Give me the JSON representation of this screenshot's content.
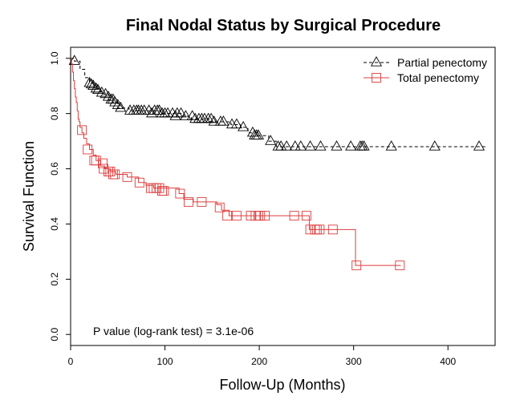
{
  "chart_data": {
    "type": "line",
    "title": "Final Nodal Status by Surgical Procedure",
    "xlabel": "Follow-Up (Months)",
    "ylabel": "Survival Function",
    "xlim": [
      0,
      450
    ],
    "ylim": [
      -0.04,
      1.04
    ],
    "x_ticks": [
      0,
      100,
      200,
      300,
      400
    ],
    "y_ticks": [
      0.0,
      0.2,
      0.4,
      0.6,
      0.8,
      1.0
    ],
    "x_tick_labels": [
      "0",
      "100",
      "200",
      "300",
      "400"
    ],
    "y_tick_labels": [
      "0.0",
      "0.2",
      "0.4",
      "0.6",
      "0.8",
      "1.0"
    ],
    "grid": false,
    "legend_position": "top-right",
    "annotation": "P value (log-rank test) = 3.1e-06",
    "series": [
      {
        "name": "Partial penectomy",
        "color": "#000000",
        "line_style": "dashed",
        "marker": "triangle",
        "steps": [
          [
            0,
            1.0
          ],
          [
            4,
            0.99
          ],
          [
            10,
            0.96
          ],
          [
            15,
            0.93
          ],
          [
            20,
            0.91
          ],
          [
            25,
            0.89
          ],
          [
            30,
            0.88
          ],
          [
            35,
            0.87
          ],
          [
            40,
            0.85
          ],
          [
            45,
            0.84
          ],
          [
            50,
            0.82
          ],
          [
            62,
            0.81
          ],
          [
            95,
            0.8
          ],
          [
            120,
            0.79
          ],
          [
            128,
            0.78
          ],
          [
            148,
            0.77
          ],
          [
            170,
            0.76
          ],
          [
            180,
            0.75
          ],
          [
            188,
            0.73
          ],
          [
            198,
            0.72
          ],
          [
            210,
            0.7
          ],
          [
            218,
            0.68
          ],
          [
            440,
            0.68
          ]
        ],
        "censored": [
          [
            4,
            0.99
          ],
          [
            20,
            0.91
          ],
          [
            22,
            0.905
          ],
          [
            24,
            0.9
          ],
          [
            27,
            0.89
          ],
          [
            29,
            0.885
          ],
          [
            33,
            0.875
          ],
          [
            37,
            0.87
          ],
          [
            40,
            0.86
          ],
          [
            43,
            0.85
          ],
          [
            45,
            0.85
          ],
          [
            47,
            0.84
          ],
          [
            50,
            0.83
          ],
          [
            53,
            0.82
          ],
          [
            63,
            0.81
          ],
          [
            67,
            0.81
          ],
          [
            70,
            0.81
          ],
          [
            72,
            0.81
          ],
          [
            75,
            0.81
          ],
          [
            78,
            0.81
          ],
          [
            83,
            0.81
          ],
          [
            86,
            0.8
          ],
          [
            89,
            0.81
          ],
          [
            92,
            0.81
          ],
          [
            94,
            0.81
          ],
          [
            97,
            0.8
          ],
          [
            100,
            0.8
          ],
          [
            103,
            0.8
          ],
          [
            108,
            0.8
          ],
          [
            111,
            0.79
          ],
          [
            113,
            0.8
          ],
          [
            117,
            0.8
          ],
          [
            122,
            0.79
          ],
          [
            129,
            0.79
          ],
          [
            132,
            0.78
          ],
          [
            136,
            0.78
          ],
          [
            139,
            0.78
          ],
          [
            142,
            0.78
          ],
          [
            146,
            0.78
          ],
          [
            149,
            0.78
          ],
          [
            152,
            0.77
          ],
          [
            159,
            0.77
          ],
          [
            162,
            0.77
          ],
          [
            171,
            0.76
          ],
          [
            176,
            0.76
          ],
          [
            183,
            0.75
          ],
          [
            193,
            0.73
          ],
          [
            195,
            0.72
          ],
          [
            197,
            0.72
          ],
          [
            199,
            0.72
          ],
          [
            212,
            0.7
          ],
          [
            220,
            0.68
          ],
          [
            223,
            0.68
          ],
          [
            229,
            0.68
          ],
          [
            238,
            0.68
          ],
          [
            244,
            0.68
          ],
          [
            254,
            0.68
          ],
          [
            265,
            0.68
          ],
          [
            282,
            0.68
          ],
          [
            297,
            0.68
          ],
          [
            307,
            0.68
          ],
          [
            309,
            0.68
          ],
          [
            311,
            0.68
          ],
          [
            340,
            0.68
          ],
          [
            386,
            0.68
          ],
          [
            433,
            0.68
          ]
        ]
      },
      {
        "name": "Total penectomy",
        "color": "#df3b3b",
        "line_style": "solid",
        "marker": "square",
        "steps": [
          [
            0,
            1.0
          ],
          [
            1,
            0.98
          ],
          [
            2,
            0.95
          ],
          [
            3,
            0.92
          ],
          [
            4,
            0.89
          ],
          [
            5,
            0.86
          ],
          [
            6,
            0.84
          ],
          [
            7,
            0.81
          ],
          [
            8,
            0.78
          ],
          [
            9,
            0.77
          ],
          [
            10,
            0.75
          ],
          [
            12,
            0.73
          ],
          [
            14,
            0.71
          ],
          [
            17,
            0.69
          ],
          [
            20,
            0.67
          ],
          [
            24,
            0.65
          ],
          [
            27,
            0.63
          ],
          [
            32,
            0.61
          ],
          [
            36,
            0.6
          ],
          [
            42,
            0.59
          ],
          [
            48,
            0.58
          ],
          [
            60,
            0.57
          ],
          [
            72,
            0.55
          ],
          [
            80,
            0.54
          ],
          [
            88,
            0.53
          ],
          [
            115,
            0.51
          ],
          [
            120,
            0.49
          ],
          [
            130,
            0.48
          ],
          [
            155,
            0.47
          ],
          [
            160,
            0.45
          ],
          [
            168,
            0.43
          ],
          [
            253,
            0.38
          ],
          [
            302,
            0.25
          ],
          [
            350,
            0.25
          ]
        ],
        "censored": [
          [
            12,
            0.74
          ],
          [
            18,
            0.67
          ],
          [
            25,
            0.63
          ],
          [
            27,
            0.63
          ],
          [
            34,
            0.62
          ],
          [
            35,
            0.6
          ],
          [
            40,
            0.59
          ],
          [
            42,
            0.59
          ],
          [
            45,
            0.58
          ],
          [
            47,
            0.58
          ],
          [
            60,
            0.57
          ],
          [
            73,
            0.55
          ],
          [
            85,
            0.53
          ],
          [
            88,
            0.53
          ],
          [
            91,
            0.53
          ],
          [
            94,
            0.53
          ],
          [
            97,
            0.52
          ],
          [
            99,
            0.52
          ],
          [
            116,
            0.51
          ],
          [
            125,
            0.48
          ],
          [
            139,
            0.48
          ],
          [
            158,
            0.46
          ],
          [
            166,
            0.43
          ],
          [
            176,
            0.43
          ],
          [
            191,
            0.43
          ],
          [
            196,
            0.43
          ],
          [
            199,
            0.43
          ],
          [
            201,
            0.43
          ],
          [
            206,
            0.43
          ],
          [
            237,
            0.43
          ],
          [
            250,
            0.43
          ],
          [
            254,
            0.38
          ],
          [
            259,
            0.38
          ],
          [
            261,
            0.38
          ],
          [
            264,
            0.38
          ],
          [
            278,
            0.38
          ],
          [
            303,
            0.25
          ],
          [
            349,
            0.25
          ]
        ]
      }
    ]
  }
}
